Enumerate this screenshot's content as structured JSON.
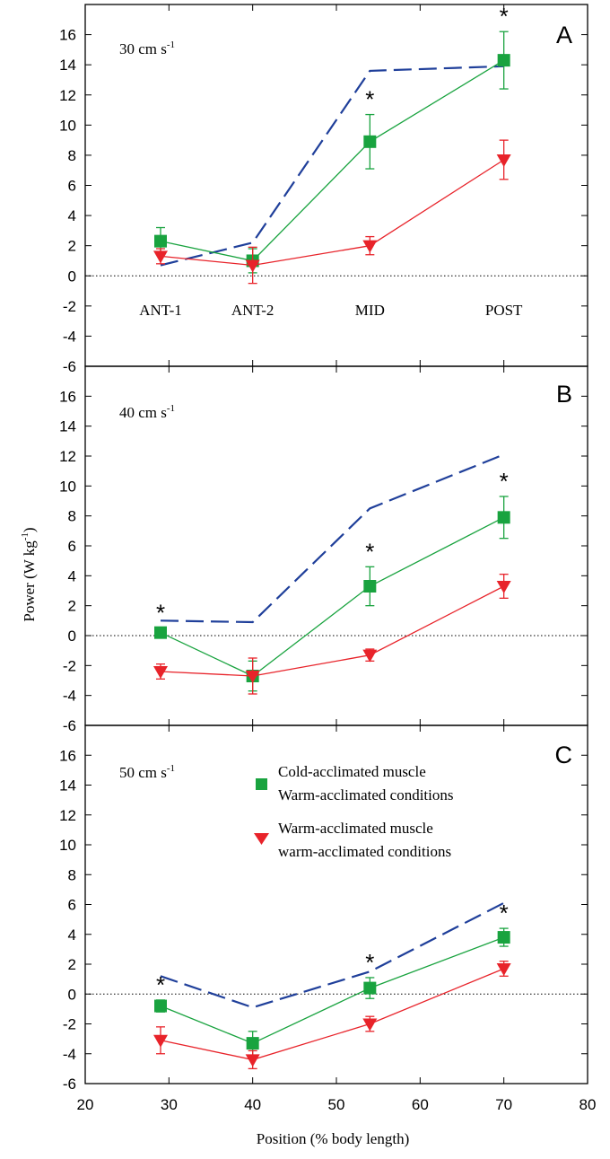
{
  "colors": {
    "green": "#19a33f",
    "red": "#e8232a",
    "blue": "#1f3f9a",
    "axis": "#000000"
  },
  "y_label": {
    "main": "Power (W kg",
    "sup": "-1",
    "close": ")"
  },
  "x_label": "Position (% body length)",
  "legend": {
    "green_line1": "Cold-acclimated muscle",
    "green_line2": "Warm-acclimated conditions",
    "red_line1": "Warm-acclimated muscle",
    "red_line2": "warm-acclimated conditions"
  },
  "chart_data": [
    {
      "type": "line",
      "panel": "A",
      "speed": {
        "main": "30 cm s",
        "sup": "-1"
      },
      "position_labels": [
        {
          "x": 29,
          "text": "ANT-1"
        },
        {
          "x": 40,
          "text": "ANT-2"
        },
        {
          "x": 54,
          "text": "MID"
        },
        {
          "x": 70,
          "text": "POST"
        }
      ],
      "xlim": [
        20,
        80
      ],
      "ylim": [
        -6,
        18
      ],
      "yticks": [
        -6,
        -4,
        -2,
        0,
        2,
        4,
        6,
        8,
        10,
        12,
        14,
        16
      ],
      "x": [
        29,
        40,
        54,
        70
      ],
      "series": [
        {
          "key": "green",
          "values": [
            2.3,
            1.0,
            8.9,
            14.3
          ],
          "err": [
            0.9,
            0.8,
            1.8,
            1.9
          ],
          "marker": "square"
        },
        {
          "key": "red",
          "values": [
            1.3,
            0.7,
            2.0,
            7.7
          ],
          "err": [
            0.5,
            1.2,
            0.6,
            1.3
          ],
          "marker": "triangle-down"
        },
        {
          "key": "blue",
          "values": [
            0.7,
            2.2,
            13.6,
            13.9
          ],
          "dashed": true
        }
      ],
      "asterisks": [
        54,
        70
      ]
    },
    {
      "type": "line",
      "panel": "B",
      "speed": {
        "main": "40 cm s",
        "sup": "-1"
      },
      "position_labels": [],
      "xlim": [
        20,
        80
      ],
      "ylim": [
        -6,
        18
      ],
      "yticks": [
        -6,
        -4,
        -2,
        0,
        2,
        4,
        6,
        8,
        10,
        12,
        14,
        16
      ],
      "x": [
        29,
        40,
        54,
        70
      ],
      "series": [
        {
          "key": "green",
          "values": [
            0.2,
            -2.7,
            3.3,
            7.9
          ],
          "err": [
            0.3,
            1.0,
            1.3,
            1.4
          ],
          "marker": "square"
        },
        {
          "key": "red",
          "values": [
            -2.4,
            -2.7,
            -1.3,
            3.3
          ],
          "err": [
            0.5,
            1.2,
            0.4,
            0.8
          ],
          "marker": "triangle-down"
        },
        {
          "key": "blue",
          "values": [
            1.0,
            0.9,
            8.5,
            12.1
          ],
          "dashed": true
        }
      ],
      "asterisks": [
        29,
        54,
        70
      ]
    },
    {
      "type": "line",
      "panel": "C",
      "speed": {
        "main": "50 cm s",
        "sup": "-1"
      },
      "position_labels": [],
      "xlim": [
        20,
        80
      ],
      "ylim": [
        -6,
        18
      ],
      "yticks": [
        -6,
        -4,
        -2,
        0,
        2,
        4,
        6,
        8,
        10,
        12,
        14,
        16
      ],
      "xticks": [
        20,
        30,
        40,
        50,
        60,
        70,
        80
      ],
      "x": [
        29,
        40,
        54,
        70
      ],
      "series": [
        {
          "key": "green",
          "values": [
            -0.8,
            -3.3,
            0.4,
            3.8
          ],
          "err": [
            0.4,
            0.8,
            0.7,
            0.6
          ],
          "marker": "square"
        },
        {
          "key": "red",
          "values": [
            -3.1,
            -4.4,
            -2.0,
            1.7
          ],
          "err": [
            0.9,
            0.6,
            0.5,
            0.5
          ],
          "marker": "triangle-down"
        },
        {
          "key": "blue",
          "values": [
            1.2,
            -0.9,
            1.5,
            6.1
          ],
          "dashed": true
        }
      ],
      "asterisks": [
        29,
        54,
        70
      ]
    }
  ]
}
